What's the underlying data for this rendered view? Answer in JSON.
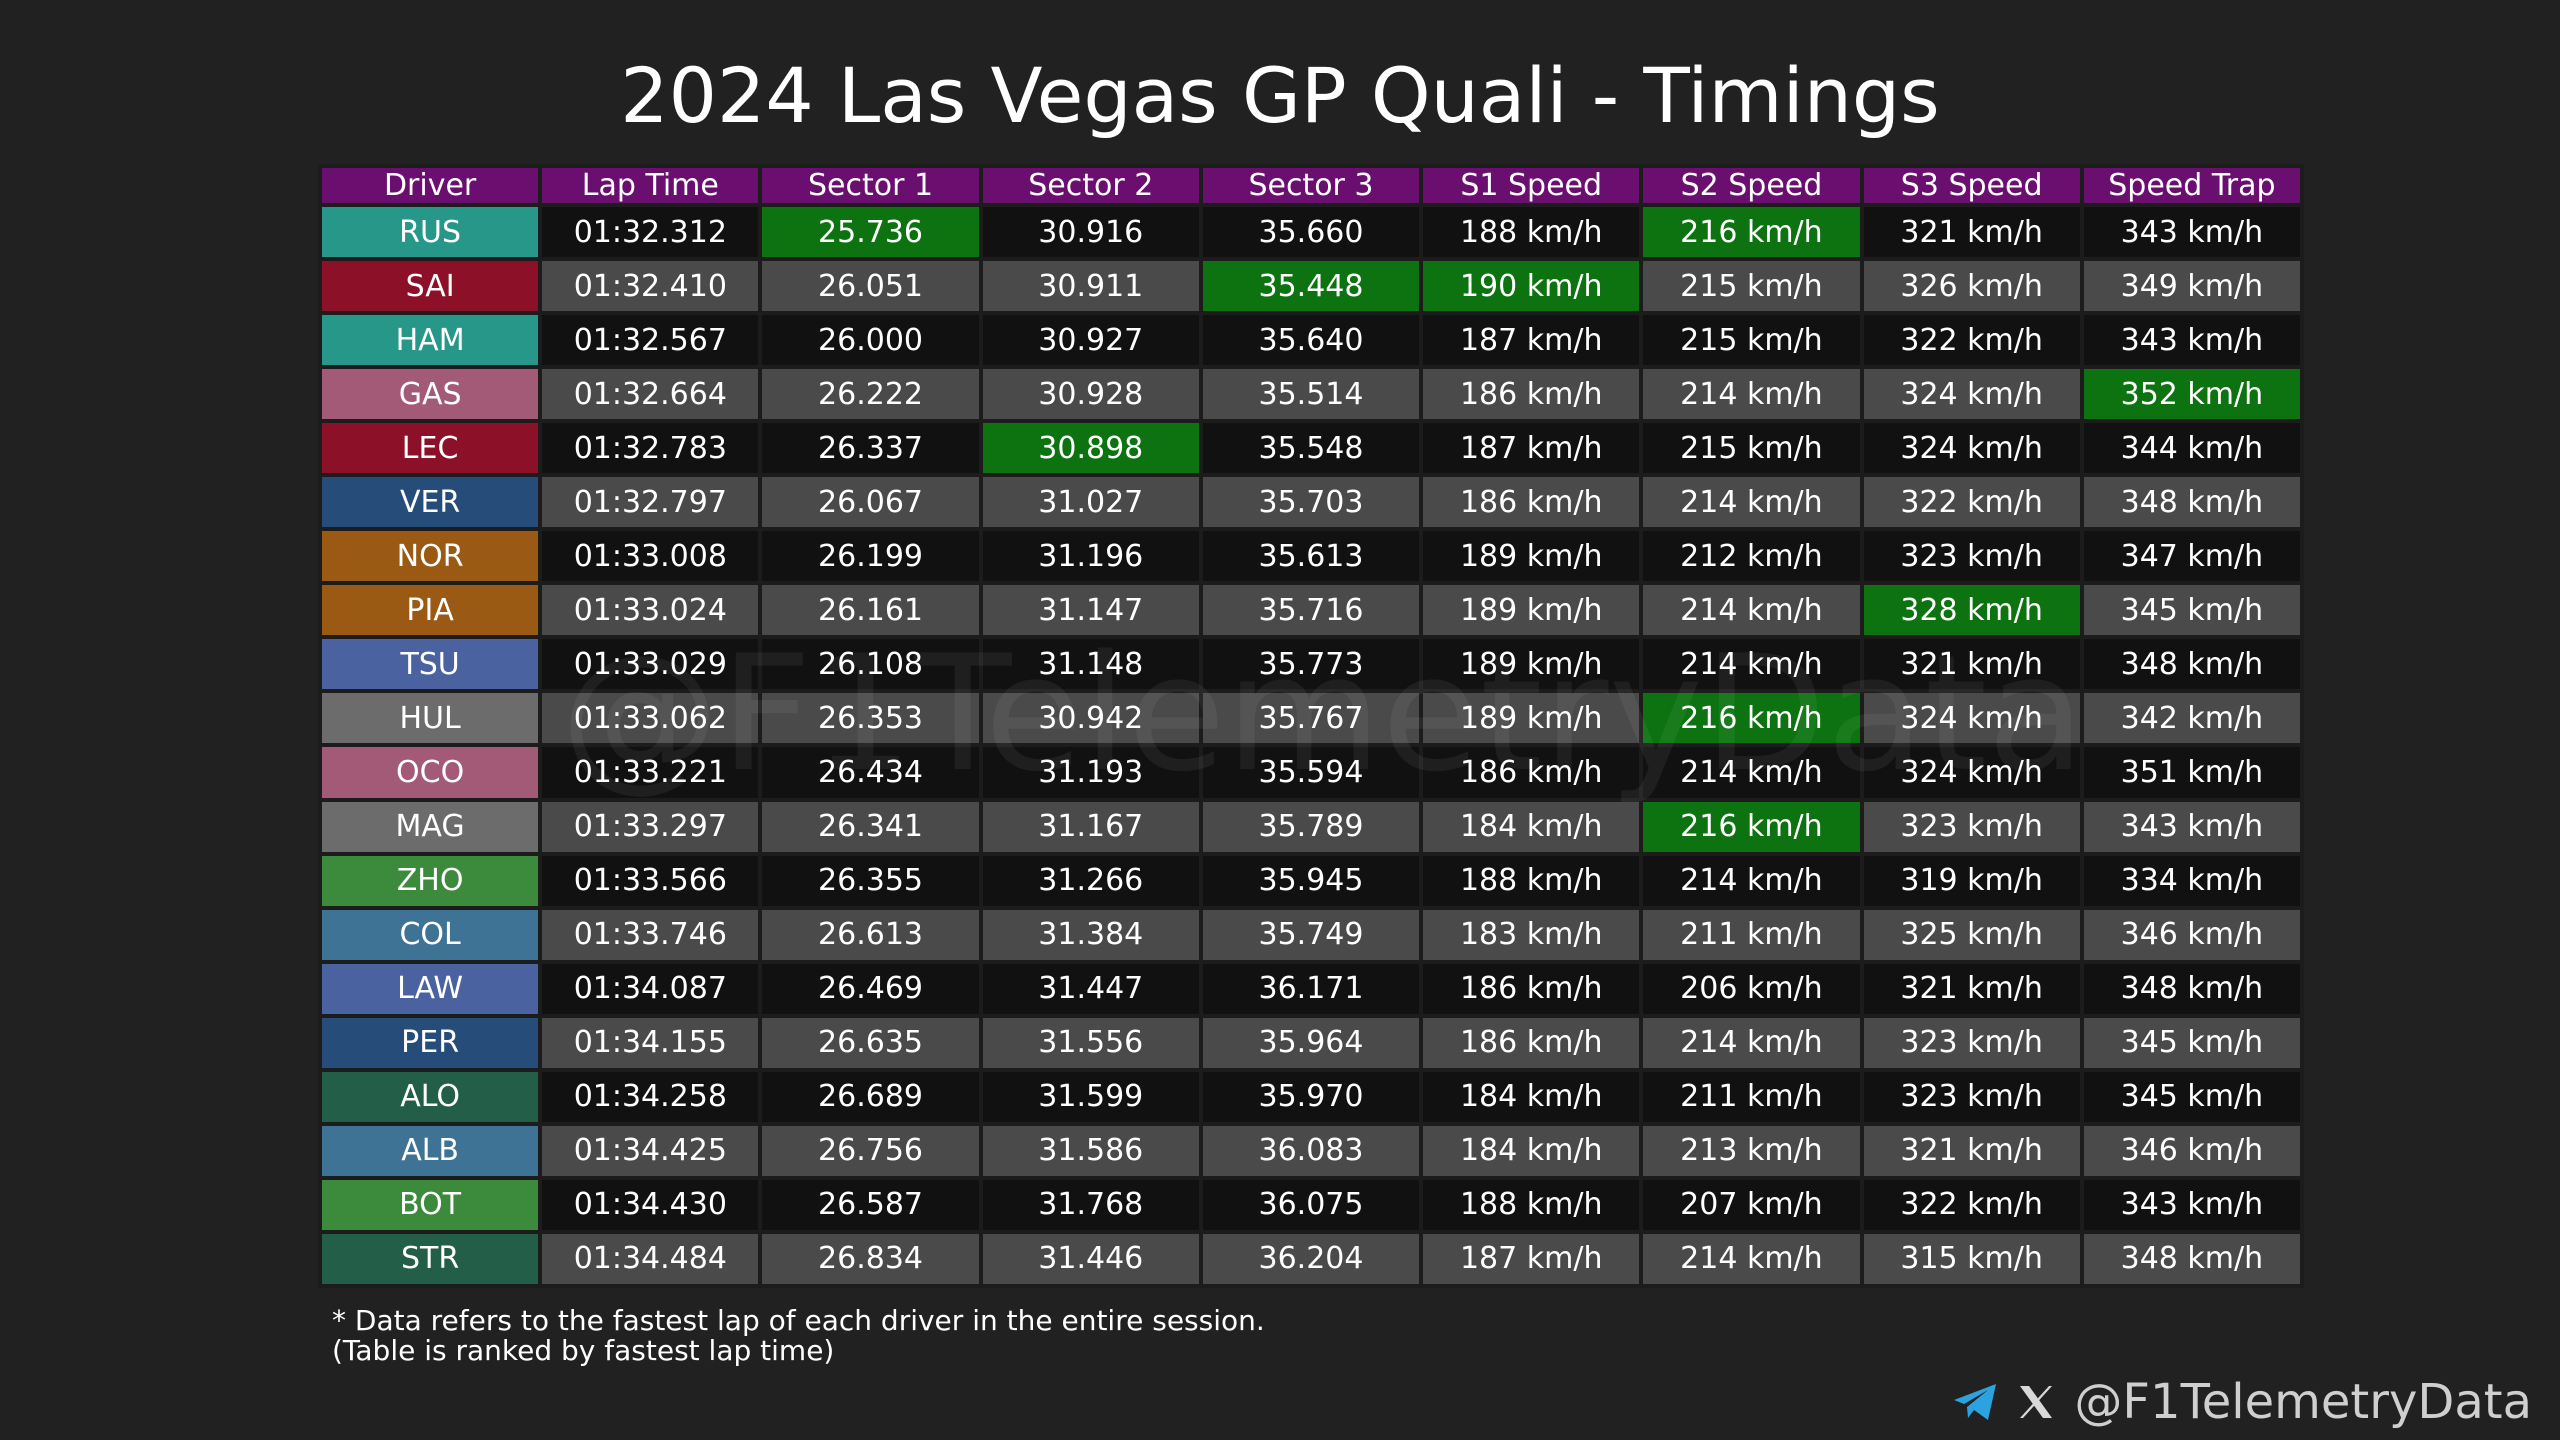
{
  "title": "2024 Las Vegas GP Quali - Timings",
  "watermark": "@F1TelemetryData",
  "colors": {
    "header": "#6a0f70",
    "best": "#0c7310",
    "row_dark": "#111111",
    "row_light": "#4a4a4a",
    "telegram": "#2aa3e0"
  },
  "chart_data": {
    "type": "table",
    "columns": [
      "Driver",
      "Lap Time",
      "Sector 1",
      "Sector 2",
      "Sector 3",
      "S1 Speed",
      "S2 Speed",
      "S3 Speed",
      "Speed Trap"
    ],
    "rows": [
      {
        "driver": "RUS",
        "color": "#27978a",
        "cells": [
          "01:32.312",
          "25.736",
          "30.916",
          "35.660",
          "188 km/h",
          "216 km/h",
          "321 km/h",
          "343 km/h"
        ],
        "best": [
          1,
          5
        ]
      },
      {
        "driver": "SAI",
        "color": "#8c1128",
        "cells": [
          "01:32.410",
          "26.051",
          "30.911",
          "35.448",
          "190 km/h",
          "215 km/h",
          "326 km/h",
          "349 km/h"
        ],
        "best": [
          3,
          4
        ]
      },
      {
        "driver": "HAM",
        "color": "#27978a",
        "cells": [
          "01:32.567",
          "26.000",
          "30.927",
          "35.640",
          "187 km/h",
          "215 km/h",
          "322 km/h",
          "343 km/h"
        ],
        "best": []
      },
      {
        "driver": "GAS",
        "color": "#a35a77",
        "cells": [
          "01:32.664",
          "26.222",
          "30.928",
          "35.514",
          "186 km/h",
          "214 km/h",
          "324 km/h",
          "352 km/h"
        ],
        "best": [
          7
        ]
      },
      {
        "driver": "LEC",
        "color": "#8c1128",
        "cells": [
          "01:32.783",
          "26.337",
          "30.898",
          "35.548",
          "187 km/h",
          "215 km/h",
          "324 km/h",
          "344 km/h"
        ],
        "best": [
          2
        ]
      },
      {
        "driver": "VER",
        "color": "#264c7a",
        "cells": [
          "01:32.797",
          "26.067",
          "31.027",
          "35.703",
          "186 km/h",
          "214 km/h",
          "322 km/h",
          "348 km/h"
        ],
        "best": []
      },
      {
        "driver": "NOR",
        "color": "#9a5a14",
        "cells": [
          "01:33.008",
          "26.199",
          "31.196",
          "35.613",
          "189 km/h",
          "212 km/h",
          "323 km/h",
          "347 km/h"
        ],
        "best": []
      },
      {
        "driver": "PIA",
        "color": "#9a5a14",
        "cells": [
          "01:33.024",
          "26.161",
          "31.147",
          "35.716",
          "189 km/h",
          "214 km/h",
          "328 km/h",
          "345 km/h"
        ],
        "best": [
          6
        ]
      },
      {
        "driver": "TSU",
        "color": "#4a62a0",
        "cells": [
          "01:33.029",
          "26.108",
          "31.148",
          "35.773",
          "189 km/h",
          "214 km/h",
          "321 km/h",
          "348 km/h"
        ],
        "best": []
      },
      {
        "driver": "HUL",
        "color": "#6c6c6c",
        "cells": [
          "01:33.062",
          "26.353",
          "30.942",
          "35.767",
          "189 km/h",
          "216 km/h",
          "324 km/h",
          "342 km/h"
        ],
        "best": [
          5
        ]
      },
      {
        "driver": "OCO",
        "color": "#a35a77",
        "cells": [
          "01:33.221",
          "26.434",
          "31.193",
          "35.594",
          "186 km/h",
          "214 km/h",
          "324 km/h",
          "351 km/h"
        ],
        "best": []
      },
      {
        "driver": "MAG",
        "color": "#6c6c6c",
        "cells": [
          "01:33.297",
          "26.341",
          "31.167",
          "35.789",
          "184 km/h",
          "216 km/h",
          "323 km/h",
          "343 km/h"
        ],
        "best": [
          5
        ]
      },
      {
        "driver": "ZHO",
        "color": "#3c8a3c",
        "cells": [
          "01:33.566",
          "26.355",
          "31.266",
          "35.945",
          "188 km/h",
          "214 km/h",
          "319 km/h",
          "334 km/h"
        ],
        "best": []
      },
      {
        "driver": "COL",
        "color": "#3f7396",
        "cells": [
          "01:33.746",
          "26.613",
          "31.384",
          "35.749",
          "183 km/h",
          "211 km/h",
          "325 km/h",
          "346 km/h"
        ],
        "best": []
      },
      {
        "driver": "LAW",
        "color": "#4a62a0",
        "cells": [
          "01:34.087",
          "26.469",
          "31.447",
          "36.171",
          "186 km/h",
          "206 km/h",
          "321 km/h",
          "348 km/h"
        ],
        "best": []
      },
      {
        "driver": "PER",
        "color": "#264c7a",
        "cells": [
          "01:34.155",
          "26.635",
          "31.556",
          "35.964",
          "186 km/h",
          "214 km/h",
          "323 km/h",
          "345 km/h"
        ],
        "best": []
      },
      {
        "driver": "ALO",
        "color": "#235e48",
        "cells": [
          "01:34.258",
          "26.689",
          "31.599",
          "35.970",
          "184 km/h",
          "211 km/h",
          "323 km/h",
          "345 km/h"
        ],
        "best": []
      },
      {
        "driver": "ALB",
        "color": "#3f7396",
        "cells": [
          "01:34.425",
          "26.756",
          "31.586",
          "36.083",
          "184 km/h",
          "213 km/h",
          "321 km/h",
          "346 km/h"
        ],
        "best": []
      },
      {
        "driver": "BOT",
        "color": "#3c8a3c",
        "cells": [
          "01:34.430",
          "26.587",
          "31.768",
          "36.075",
          "188 km/h",
          "207 km/h",
          "322 km/h",
          "343 km/h"
        ],
        "best": []
      },
      {
        "driver": "STR",
        "color": "#235e48",
        "cells": [
          "01:34.484",
          "26.834",
          "31.446",
          "36.204",
          "187 km/h",
          "214 km/h",
          "315 km/h",
          "348 km/h"
        ],
        "best": []
      }
    ]
  },
  "footnote": {
    "line1": "* Data refers to the fastest lap of each driver in the entire session.",
    "line2": "(Table is ranked by fastest lap time)"
  },
  "brand": {
    "icons": [
      "telegram-icon",
      "x-icon"
    ],
    "handle": "@F1TelemetryData"
  }
}
